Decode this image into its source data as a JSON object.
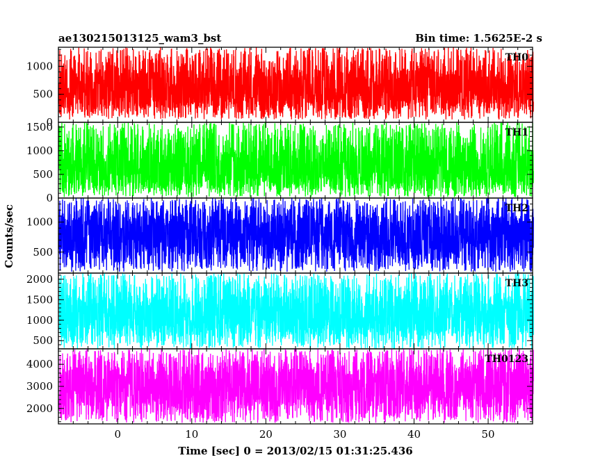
{
  "header": {
    "title": "ae130215013125_wam3_bst",
    "bin_time": "Bin time: 1.5625E-2 s"
  },
  "chart_data": {
    "type": "line",
    "xlabel": "Time [sec] 0 = 2013/02/15 01:31:25.436",
    "ylabel": "Counts/sec",
    "xlim": [
      -8,
      56
    ],
    "x_range": [
      -7.9,
      56.1
    ],
    "bin_time": 0.015625,
    "x_ticks": [
      0,
      10,
      20,
      30,
      40,
      50
    ],
    "panels": [
      {
        "name": "TH0",
        "color": "#ff0000",
        "ylim": [
          0,
          1340
        ],
        "y_ticks": [
          0,
          500,
          1000
        ],
        "mean": 600,
        "low": 50,
        "high": 1340
      },
      {
        "name": "TH1",
        "color": "#00ff00",
        "ylim": [
          0,
          1600
        ],
        "y_ticks": [
          0,
          500,
          1000,
          1500
        ],
        "mean": 600,
        "low": 20,
        "high": 1600
      },
      {
        "name": "TH2",
        "color": "#0000ff",
        "ylim": [
          150,
          1400
        ],
        "y_ticks": [
          500,
          1000
        ],
        "mean": 770,
        "low": 170,
        "high": 1400
      },
      {
        "name": "TH3",
        "color": "#00ffff",
        "ylim": [
          300,
          2150
        ],
        "y_ticks": [
          500,
          1000,
          1500,
          2000
        ],
        "mean": 1100,
        "low": 300,
        "high": 2150
      },
      {
        "name": "TH0123",
        "color": "#ff00ff",
        "ylim": [
          1300,
          4700
        ],
        "y_ticks": [
          2000,
          3000,
          4000
        ],
        "mean": 3000,
        "low": 1350,
        "high": 4700
      }
    ]
  }
}
